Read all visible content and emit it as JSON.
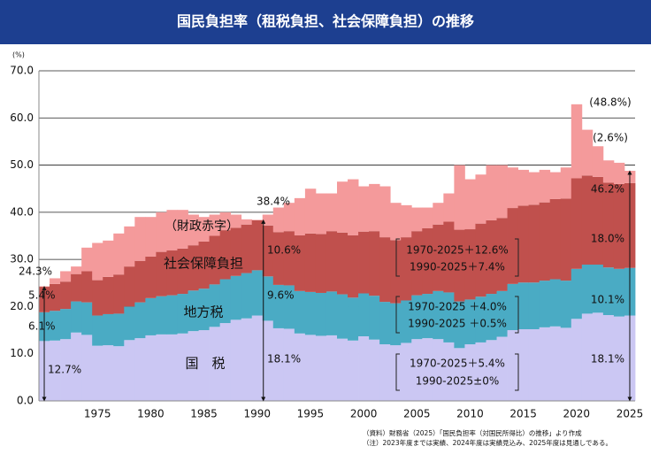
{
  "chart_data": {
    "type": "stacked-area-step",
    "title": "国民負担率（租税負担、社会保障負担）の推移",
    "y_unit": "(%)",
    "x": [
      1970,
      1971,
      1972,
      1973,
      1974,
      1975,
      1976,
      1977,
      1978,
      1979,
      1980,
      1981,
      1982,
      1983,
      1984,
      1985,
      1986,
      1987,
      1988,
      1989,
      1990,
      1991,
      1992,
      1993,
      1994,
      1995,
      1996,
      1997,
      1998,
      1999,
      2000,
      2001,
      2002,
      2003,
      2004,
      2005,
      2006,
      2007,
      2008,
      2009,
      2010,
      2011,
      2012,
      2013,
      2014,
      2015,
      2016,
      2017,
      2018,
      2019,
      2020,
      2021,
      2022,
      2023,
      2024,
      2025
    ],
    "xlim": [
      1969.5,
      2025.5
    ],
    "xticks": [
      1975,
      1980,
      1985,
      1990,
      1995,
      2000,
      2005,
      2010,
      2015,
      2020,
      2025
    ],
    "ylim": [
      0,
      70
    ],
    "yticks": [
      {
        "value": 0,
        "label": "0.0"
      },
      {
        "value": 10,
        "label": "10.0"
      },
      {
        "value": 20,
        "label": "20.0"
      },
      {
        "value": 30,
        "label": "30.0"
      },
      {
        "value": 40,
        "label": "40.0"
      },
      {
        "value": 50,
        "label": "50.0"
      },
      {
        "value": 60,
        "label": "60.0"
      },
      {
        "value": 70,
        "label": "70.0"
      }
    ],
    "grid": true,
    "series": [
      {
        "name": "国　税",
        "color": "#cbc7f3",
        "values": [
          12.7,
          12.8,
          13.1,
          14.5,
          14.0,
          11.7,
          11.8,
          11.6,
          12.9,
          13.3,
          13.9,
          14.1,
          14.1,
          14.3,
          14.8,
          15.0,
          15.7,
          16.5,
          17.2,
          17.5,
          18.1,
          17.0,
          15.4,
          15.3,
          14.3,
          14.0,
          13.8,
          13.9,
          13.2,
          12.8,
          13.7,
          13.0,
          12.0,
          11.8,
          12.3,
          13.1,
          13.3,
          13.1,
          12.4,
          11.2,
          12.0,
          12.4,
          12.9,
          13.6,
          15.0,
          15.2,
          15.2,
          15.6,
          15.8,
          15.5,
          17.4,
          18.5,
          18.7,
          18.2,
          17.9,
          18.1
        ]
      },
      {
        "name": "地方税",
        "color": "#4aabc4",
        "values": [
          6.1,
          6.3,
          6.4,
          6.6,
          6.9,
          6.4,
          6.6,
          6.9,
          7.1,
          7.6,
          7.9,
          8.1,
          8.3,
          8.4,
          8.6,
          8.8,
          9.0,
          9.3,
          9.3,
          9.6,
          9.6,
          9.4,
          9.2,
          9.2,
          9.0,
          9.1,
          9.1,
          9.3,
          9.4,
          9.1,
          9.1,
          9.3,
          9.0,
          8.9,
          9.0,
          9.3,
          9.4,
          10.2,
          10.6,
          9.9,
          9.5,
          9.7,
          9.8,
          9.7,
          9.8,
          9.9,
          9.9,
          9.9,
          10.0,
          10.0,
          10.6,
          10.4,
          10.2,
          10.1,
          10.1,
          10.1
        ]
      },
      {
        "name": "社会保障負担",
        "color": "#c0504d",
        "values": [
          5.4,
          5.7,
          5.8,
          5.8,
          6.6,
          7.5,
          7.9,
          8.3,
          8.5,
          8.8,
          8.8,
          9.4,
          9.5,
          9.6,
          9.6,
          10.0,
          10.3,
          10.4,
          10.2,
          10.3,
          10.6,
          10.8,
          11.2,
          11.5,
          11.8,
          12.4,
          12.5,
          12.8,
          13.1,
          13.2,
          13.1,
          13.7,
          13.7,
          13.4,
          13.4,
          13.6,
          13.9,
          14.1,
          15.0,
          15.2,
          14.9,
          15.5,
          15.6,
          15.5,
          16.1,
          16.3,
          16.5,
          16.6,
          17.0,
          17.4,
          19.2,
          18.9,
          18.6,
          18.0,
          18.0,
          18.0
        ]
      },
      {
        "name": "（財政赤字）",
        "color": "#f49a9b",
        "values": [
          0.1,
          1.2,
          2.2,
          1.6,
          5.0,
          7.9,
          7.7,
          8.7,
          8.5,
          9.3,
          8.4,
          8.4,
          8.6,
          8.2,
          6.5,
          5.2,
          4.5,
          3.8,
          2.8,
          1.1,
          0.1,
          2.3,
          5.2,
          6.0,
          7.9,
          9.5,
          8.6,
          8.0,
          10.8,
          11.9,
          9.6,
          10.0,
          10.8,
          7.9,
          6.8,
          5.0,
          4.4,
          4.6,
          6.0,
          13.7,
          10.6,
          10.4,
          11.7,
          11.2,
          8.6,
          7.6,
          6.9,
          6.9,
          5.7,
          6.6,
          15.7,
          9.7,
          6.5,
          4.7,
          4.5,
          2.6
        ]
      }
    ],
    "annotations": [
      "(48.8%)",
      "(2.6%)",
      "46.2%",
      "18.0%",
      "10.1%",
      "18.1%",
      "38.4%",
      "10.6%",
      "9.6%",
      "18.1%",
      "24.3%",
      "5.4%",
      "6.1%",
      "12.7%",
      "1970-2025＋12.6%",
      "1990-2025＋7.4%",
      "1970-2025 ＋4.0%",
      "1990-2025 ＋0.5%",
      "1970-2025＋5.4%",
      "1990-2025±0%"
    ],
    "notes": [
      "（資料）財務省（2025）「国民負担率（対国民所得比）の推移」より作成",
      "（注）2023年度までは実績、2024年度は実績見込み、2025年度は見通しである。"
    ]
  }
}
